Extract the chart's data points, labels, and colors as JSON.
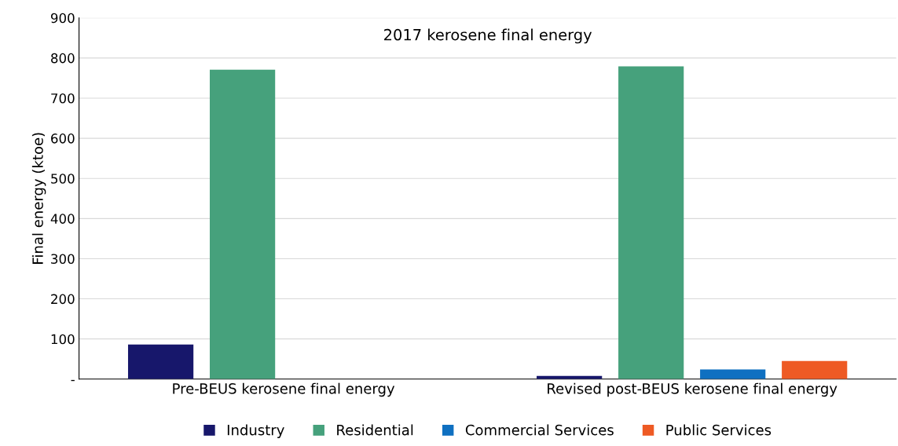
{
  "chart_data": {
    "type": "bar",
    "title": "2017 kerosene final energy",
    "ylabel": "Final energy (ktoe)",
    "categories": [
      "Pre-BEUS kerosene final energy",
      "Revised post-BEUS kerosene final energy"
    ],
    "series": [
      {
        "name": "Industry",
        "color": "#17176b",
        "values": [
          86,
          8
        ]
      },
      {
        "name": "Residential",
        "color": "#46a17c",
        "values": [
          771,
          779
        ]
      },
      {
        "name": "Commercial Services",
        "color": "#0f70c1",
        "values": [
          null,
          24
        ]
      },
      {
        "name": "Public Services",
        "color": "#ee5a24",
        "values": [
          null,
          45
        ]
      }
    ],
    "ylim": [
      0,
      900
    ],
    "yticks": [
      {
        "value": 0,
        "label": "-"
      },
      100,
      200,
      300,
      400,
      500,
      600,
      700,
      800,
      900
    ],
    "grid": "y",
    "legend": "bottom"
  }
}
